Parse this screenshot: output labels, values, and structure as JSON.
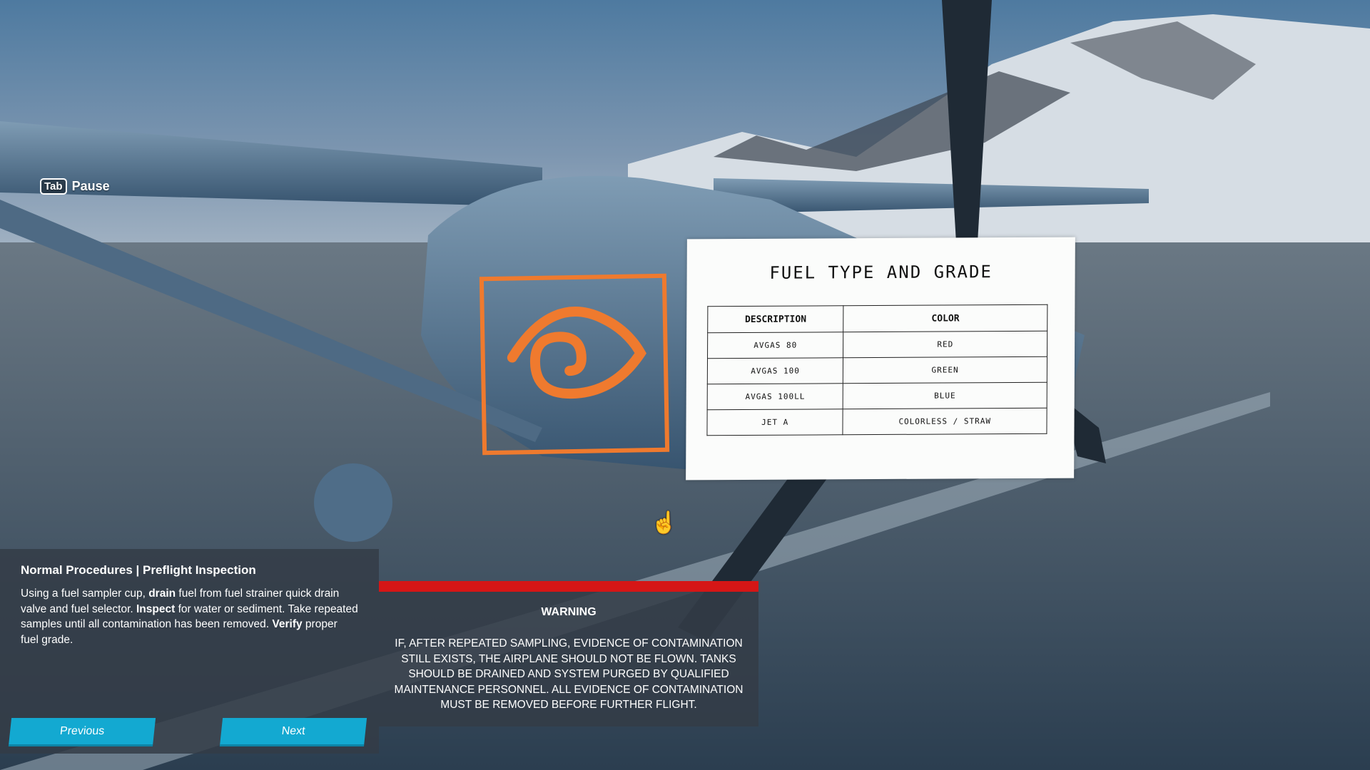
{
  "hud": {
    "key": "Tab",
    "label": "Pause"
  },
  "fuel_card": {
    "title": "FUEL TYPE AND GRADE",
    "headers": [
      "DESCRIPTION",
      "COLOR"
    ],
    "rows": [
      {
        "description": "AVGAS 80",
        "color": "RED",
        "swatch": "#f2a0a6"
      },
      {
        "description": "AVGAS 100",
        "color": "GREEN",
        "swatch": "#9ccd8a"
      },
      {
        "description": "AVGAS 100LL",
        "color": "BLUE",
        "swatch": "#a7d9e6"
      },
      {
        "description": "JET A",
        "color": "COLORLESS / STRAW",
        "swatch": "#dcdcd4"
      }
    ]
  },
  "inspect_marker": {
    "icon": "eye-icon",
    "color": "#ef7a2e"
  },
  "procedure": {
    "title": "Normal Procedures | Preflight Inspection",
    "body": [
      {
        "t": "Using a fuel sampler cup, "
      },
      {
        "t": "drain",
        "b": true
      },
      {
        "t": " fuel from fuel strainer quick drain valve and fuel selector. "
      },
      {
        "t": "Inspect",
        "b": true
      },
      {
        "t": " for water or sediment. Take repeated samples until all contamination has been removed. "
      },
      {
        "t": "Verify",
        "b": true
      },
      {
        "t": " proper fuel grade."
      }
    ],
    "previous_label": "Previous",
    "next_label": "Next"
  },
  "warning": {
    "title": "WARNING",
    "text": "IF, AFTER REPEATED SAMPLING, EVIDENCE OF CONTAMINATION STILL EXISTS, THE AIRPLANE SHOULD NOT BE FLOWN. TANKS SHOULD BE DRAINED AND SYSTEM PURGED BY QUALIFIED MAINTENANCE PERSONNEL. ALL EVIDENCE OF CONTAMINATION MUST BE REMOVED BEFORE FURTHER FLIGHT.",
    "bar_color": "#d51616"
  },
  "colors": {
    "button": "#13a9d1"
  }
}
